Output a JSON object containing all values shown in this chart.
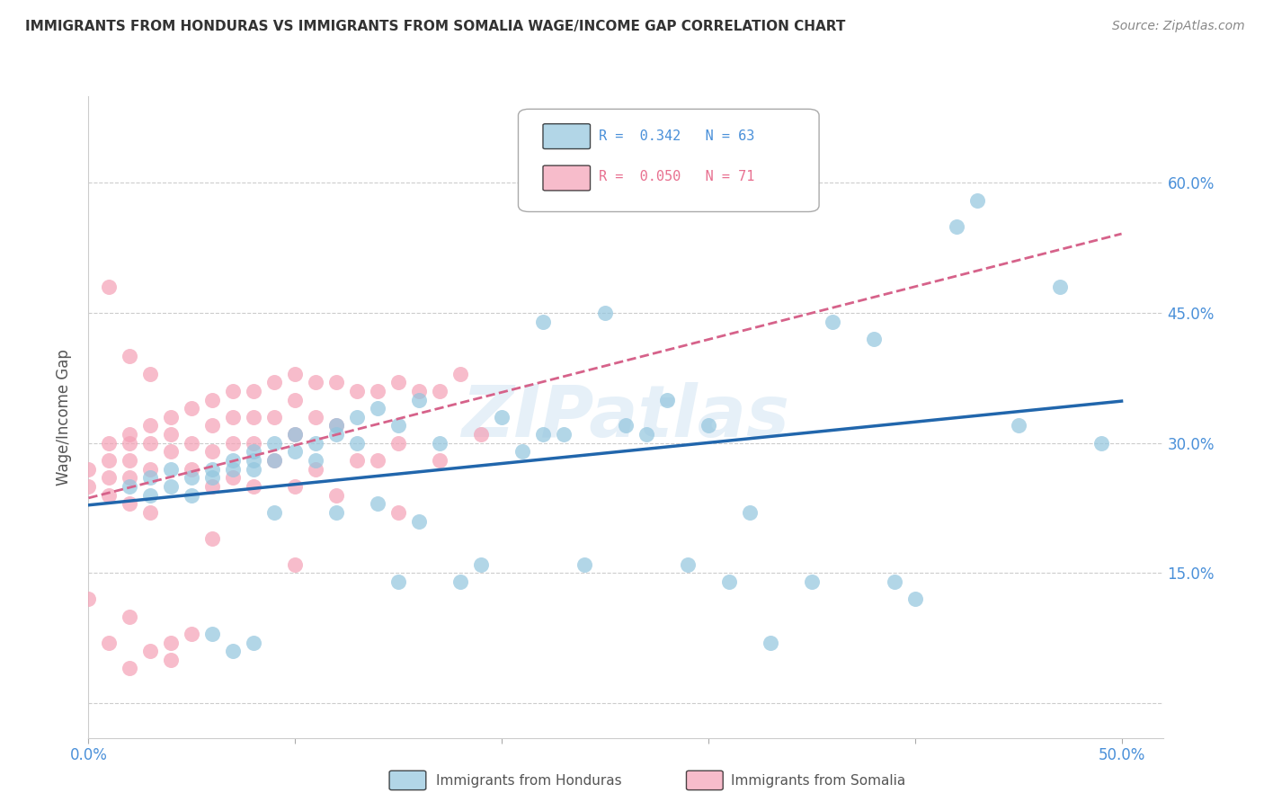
{
  "title": "IMMIGRANTS FROM HONDURAS VS IMMIGRANTS FROM SOMALIA WAGE/INCOME GAP CORRELATION CHART",
  "source": "Source: ZipAtlas.com",
  "ylabel": "Wage/Income Gap",
  "honduras_R": "0.342",
  "honduras_N": "63",
  "somalia_R": "0.050",
  "somalia_N": "71",
  "honduras_color": "#92c5de",
  "somalia_color": "#f4a0b5",
  "trendline_honduras_color": "#2166ac",
  "trendline_somalia_color": "#d6628a",
  "background_color": "#ffffff",
  "grid_color": "#cccccc",
  "watermark": "ZIPatlas",
  "xlim": [
    0.0,
    0.52
  ],
  "ylim": [
    -0.04,
    0.7
  ],
  "honduras_scatter_x": [
    0.02,
    0.03,
    0.03,
    0.04,
    0.04,
    0.05,
    0.05,
    0.06,
    0.06,
    0.06,
    0.07,
    0.07,
    0.07,
    0.08,
    0.08,
    0.08,
    0.08,
    0.09,
    0.09,
    0.09,
    0.1,
    0.1,
    0.11,
    0.11,
    0.12,
    0.12,
    0.12,
    0.13,
    0.13,
    0.14,
    0.14,
    0.15,
    0.15,
    0.16,
    0.16,
    0.17,
    0.18,
    0.19,
    0.2,
    0.21,
    0.22,
    0.22,
    0.23,
    0.24,
    0.25,
    0.26,
    0.27,
    0.28,
    0.29,
    0.3,
    0.31,
    0.32,
    0.33,
    0.35,
    0.36,
    0.38,
    0.39,
    0.4,
    0.42,
    0.43,
    0.45,
    0.47,
    0.49
  ],
  "honduras_scatter_y": [
    0.25,
    0.26,
    0.24,
    0.27,
    0.25,
    0.26,
    0.24,
    0.27,
    0.26,
    0.08,
    0.28,
    0.27,
    0.06,
    0.29,
    0.28,
    0.27,
    0.07,
    0.3,
    0.28,
    0.22,
    0.31,
    0.29,
    0.3,
    0.28,
    0.32,
    0.31,
    0.22,
    0.33,
    0.3,
    0.34,
    0.23,
    0.32,
    0.14,
    0.35,
    0.21,
    0.3,
    0.14,
    0.16,
    0.33,
    0.29,
    0.44,
    0.31,
    0.31,
    0.16,
    0.45,
    0.32,
    0.31,
    0.35,
    0.16,
    0.32,
    0.14,
    0.22,
    0.07,
    0.14,
    0.44,
    0.42,
    0.14,
    0.12,
    0.55,
    0.58,
    0.32,
    0.48,
    0.3
  ],
  "somalia_scatter_x": [
    0.0,
    0.0,
    0.01,
    0.01,
    0.01,
    0.01,
    0.01,
    0.02,
    0.02,
    0.02,
    0.02,
    0.02,
    0.02,
    0.02,
    0.03,
    0.03,
    0.03,
    0.03,
    0.03,
    0.04,
    0.04,
    0.04,
    0.04,
    0.04,
    0.05,
    0.05,
    0.05,
    0.05,
    0.06,
    0.06,
    0.06,
    0.06,
    0.06,
    0.07,
    0.07,
    0.07,
    0.07,
    0.08,
    0.08,
    0.08,
    0.08,
    0.09,
    0.09,
    0.09,
    0.1,
    0.1,
    0.1,
    0.1,
    0.1,
    0.11,
    0.11,
    0.11,
    0.12,
    0.12,
    0.12,
    0.13,
    0.13,
    0.14,
    0.14,
    0.15,
    0.15,
    0.15,
    0.16,
    0.17,
    0.17,
    0.18,
    0.19,
    0.01,
    0.02,
    0.03,
    0.0
  ],
  "somalia_scatter_y": [
    0.27,
    0.25,
    0.3,
    0.28,
    0.26,
    0.24,
    0.07,
    0.31,
    0.3,
    0.28,
    0.26,
    0.23,
    0.1,
    0.04,
    0.32,
    0.3,
    0.27,
    0.22,
    0.06,
    0.33,
    0.31,
    0.29,
    0.07,
    0.05,
    0.34,
    0.3,
    0.27,
    0.08,
    0.35,
    0.32,
    0.29,
    0.25,
    0.19,
    0.36,
    0.33,
    0.3,
    0.26,
    0.36,
    0.33,
    0.3,
    0.25,
    0.37,
    0.33,
    0.28,
    0.38,
    0.35,
    0.31,
    0.25,
    0.16,
    0.37,
    0.33,
    0.27,
    0.37,
    0.32,
    0.24,
    0.36,
    0.28,
    0.36,
    0.28,
    0.37,
    0.3,
    0.22,
    0.36,
    0.36,
    0.28,
    0.38,
    0.31,
    0.48,
    0.4,
    0.38,
    0.12
  ]
}
